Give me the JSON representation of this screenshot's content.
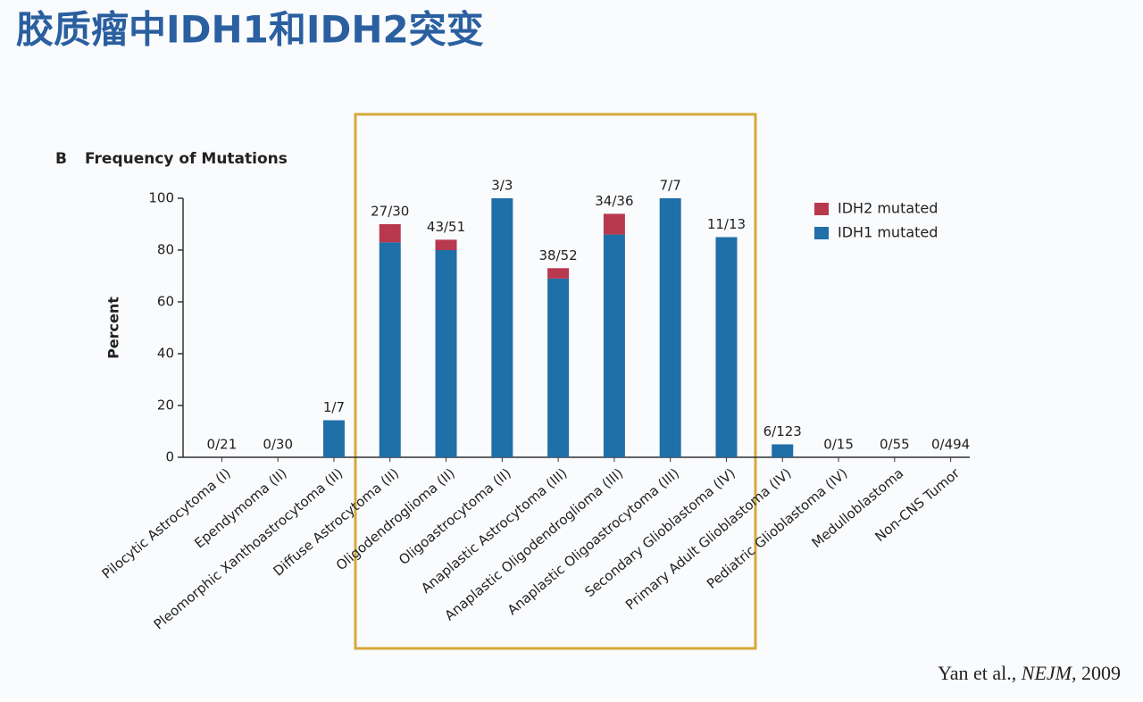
{
  "slide_title": "胶质瘤中IDH1和IDH2突变",
  "panel_label": "B",
  "citation": [
    "Yan et al., ",
    "NEJM",
    ", 2009"
  ],
  "chart_data": {
    "type": "stacked_bar",
    "title": "Frequency of Mutations",
    "y_label": "Percent",
    "categories": [
      "Pilocytic Astrocytoma (I)",
      "Ependymoma (II)",
      "Pleomorphic Xanthoastrocytoma (II)",
      "Diffuse Astrocytoma (II)",
      "Oligodendroglioma (II)",
      "Oligoastrocytoma (II)",
      "Anaplastic Astrocytoma (III)",
      "Anaplastic Oligodendroglioma (III)",
      "Anaplastic Oligoastrocytoma (III)",
      "Secondary Glioblastoma (IV)",
      "Primary Adult Glioblastoma (IV)",
      "Pediatric Glioblastoma (IV)",
      "Medulloblastoma",
      "Non-CNS Tumor"
    ],
    "series": [
      {
        "name": "IDH1 mutated",
        "color": "#1f6fa8",
        "values": [
          0,
          0,
          14.3,
          83,
          80,
          100,
          69,
          86,
          100,
          85,
          5,
          0,
          0,
          0
        ]
      },
      {
        "name": "IDH2 mutated",
        "color": "#b8384e",
        "values": [
          0,
          0,
          0,
          7,
          4,
          0,
          4,
          8,
          0,
          0,
          0,
          0,
          0,
          0
        ]
      }
    ],
    "bar_labels": [
      "0/21",
      "0/30",
      "1/7",
      "27/30",
      "43/51",
      "3/3",
      "38/52",
      "34/36",
      "7/7",
      "11/13",
      "6/123",
      "0/15",
      "0/55",
      "0/494"
    ],
    "ylim": [
      0,
      100
    ],
    "yticks": [
      0,
      20,
      40,
      60,
      80,
      100
    ],
    "legend": "top-right"
  }
}
